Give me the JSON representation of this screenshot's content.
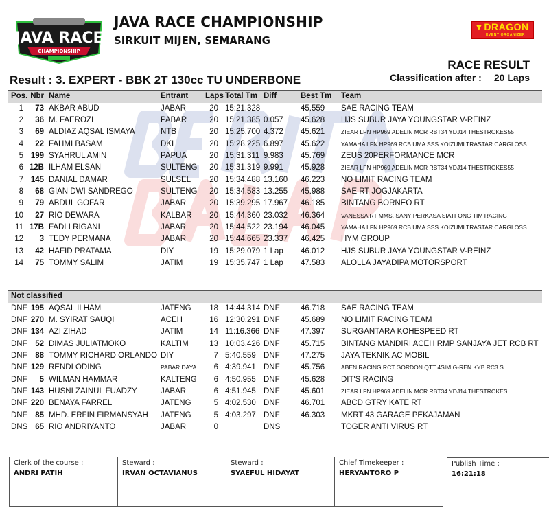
{
  "header": {
    "logo_text": "JAVA RACE CHAMPIONSHIP",
    "title": "JAVA RACE CHAMPIONSHIP",
    "subtitle": "SIRKUIT MIJEN, SEMARANG",
    "result_label": "Result : 3. EXPERT - BBK 2T 130cc TU UNDERBONE",
    "organizer_logo": "DRAGON EVENT ORGANIZER",
    "race_result": "RACE RESULT",
    "classification_label": "Classification after :",
    "classification_value": "20 Laps"
  },
  "watermark": "BERITA BALAP .COM",
  "columns": {
    "pos": "Pos.",
    "nbr": "Nbr",
    "name": "Name",
    "entrant": "Entrant",
    "laps": "Laps",
    "total": "Total Tm",
    "diff": "Diff",
    "best": "Best Tm",
    "team": "Team"
  },
  "classified": [
    {
      "pos": "1",
      "nbr": "73",
      "name": "AKBAR ABUD",
      "entrant": "JABAR",
      "laps": "20",
      "total": "15:21.328",
      "diff": "",
      "best": "45.559",
      "team": "SAE RACING TEAM"
    },
    {
      "pos": "2",
      "nbr": "36",
      "name": "M. FAEROZI",
      "entrant": "PABAR",
      "laps": "20",
      "total": "15:21.385",
      "diff": "0.057",
      "best": "45.628",
      "team": "HJS SUBUR JAYA YOUNGSTAR V-REINZ"
    },
    {
      "pos": "3",
      "nbr": "69",
      "name": "ALDIAZ AQSAL ISMAYA",
      "entrant": "NTB",
      "laps": "20",
      "total": "15:25.700",
      "diff": "4.372",
      "best": "45.621",
      "team": "ZIEAR LFN HP969 ADELIN MCR RBT34 YDJ14 THESTROKES55",
      "small": true
    },
    {
      "pos": "4",
      "nbr": "22",
      "name": "FAHMI BASAM",
      "entrant": "DKI",
      "laps": "20",
      "total": "15:28.225",
      "diff": "6.897",
      "best": "45.622",
      "team": "YAMAHA LFN HP969 RCB UMA SSS KOIZUMI TRASTAR CARGLOSS",
      "small": true
    },
    {
      "pos": "5",
      "nbr": "199",
      "name": "SYAHRUL AMIN",
      "entrant": "PAPUA",
      "laps": "20",
      "total": "15:31.311",
      "diff": "9.983",
      "best": "45.769",
      "team": "ZEUS 20PERFORMANCE MCR"
    },
    {
      "pos": "6",
      "nbr": "12B",
      "name": "ILHAM ELSAN",
      "entrant": "SULTENG",
      "laps": "20",
      "total": "15:31.319",
      "diff": "9.991",
      "best": "45.928",
      "team": "ZIEAR LFN HP969 ADELIN MCR RBT34 YDJ14 THESTROKES55",
      "small": true
    },
    {
      "pos": "7",
      "nbr": "145",
      "name": "DANIAL DAMAR",
      "entrant": "SULSEL",
      "laps": "20",
      "total": "15:34.488",
      "diff": "13.160",
      "best": "46.223",
      "team": "NO LIMIT RACING TEAM"
    },
    {
      "pos": "8",
      "nbr": "68",
      "name": "GIAN DWI SANDREGO",
      "entrant": "SULTENG",
      "laps": "20",
      "total": "15:34.583",
      "diff": "13.255",
      "best": "45.988",
      "team": "SAE RT JOGJAKARTA"
    },
    {
      "pos": "9",
      "nbr": "79",
      "name": "ABDUL GOFAR",
      "entrant": "JABAR",
      "laps": "20",
      "total": "15:39.295",
      "diff": "17.967",
      "best": "46.185",
      "team": "BINTANG BORNEO RT"
    },
    {
      "pos": "10",
      "nbr": "27",
      "name": "RIO DEWARA",
      "entrant": "KALBAR",
      "laps": "20",
      "total": "15:44.360",
      "diff": "23.032",
      "best": "46.364",
      "team": "VANESSA RT MMS, SANY PERKASA SIATFONG TIM RACING",
      "small": true
    },
    {
      "pos": "11",
      "nbr": "17B",
      "name": "FADLI RIGANI",
      "entrant": "JABAR",
      "laps": "20",
      "total": "15:44.522",
      "diff": "23.194",
      "best": "46.045",
      "team": "YAMAHA LFN HP969 RCB UMA SSS KOIZUMI TRASTAR CARGLOSS",
      "small": true
    },
    {
      "pos": "12",
      "nbr": "3",
      "name": "TEDY PERMANA",
      "entrant": "JABAR",
      "laps": "20",
      "total": "15:44.665",
      "diff": "23.337",
      "best": "46.425",
      "team": "HYM GROUP"
    },
    {
      "pos": "13",
      "nbr": "42",
      "name": "HAFID PRATAMA",
      "entrant": "DIY",
      "laps": "19",
      "total": "15:29.079",
      "diff": "1 Lap",
      "best": "46.012",
      "team": "HJS SUBUR JAYA YOUNGSTAR V-REINZ"
    },
    {
      "pos": "14",
      "nbr": "75",
      "name": "TOMMY SALIM",
      "entrant": "JATIM",
      "laps": "19",
      "total": "15:35.747",
      "diff": "1 Lap",
      "best": "47.583",
      "team": "ALOLLA JAYADIPA MOTORSPORT"
    }
  ],
  "not_classified_label": "Not classified",
  "not_classified": [
    {
      "pos": "DNF",
      "nbr": "195",
      "name": "AQSAL ILHAM",
      "entrant": "JATENG",
      "laps": "18",
      "total": "14:44.314",
      "diff": "DNF",
      "best": "46.718",
      "team": "SAE RACING TEAM"
    },
    {
      "pos": "DNF",
      "nbr": "270",
      "name": "M. SYIRAT SAUQI",
      "entrant": "ACEH",
      "laps": "16",
      "total": "12:30.291",
      "diff": "DNF",
      "best": "45.689",
      "team": "NO LIMIT RACING TEAM"
    },
    {
      "pos": "DNF",
      "nbr": "134",
      "name": "AZI ZIHAD",
      "entrant": "JATIM",
      "laps": "14",
      "total": "11:16.366",
      "diff": "DNF",
      "best": "47.397",
      "team": "SURGANTARA KOHESPEED RT"
    },
    {
      "pos": "DNF",
      "nbr": "52",
      "name": "DIMAS JULIATMOKO",
      "entrant": "KALTIM",
      "laps": "13",
      "total": "10:03.426",
      "diff": "DNF",
      "best": "45.715",
      "team": "BINTANG MANDIRI ACEH RMP SANJAYA JET RCB RT"
    },
    {
      "pos": "DNF",
      "nbr": "88",
      "name": "TOMMY RICHARD ORLANDO",
      "entrant": "DIY",
      "laps": "7",
      "total": "5:40.559",
      "diff": "DNF",
      "best": "47.275",
      "team": "JAYA TEKNIK AC MOBIL"
    },
    {
      "pos": "DNF",
      "nbr": "129",
      "name": "RENDI ODING",
      "entrant": "PABAR DAYA",
      "entrant_small": true,
      "laps": "6",
      "total": "4:39.941",
      "diff": "DNF",
      "best": "45.756",
      "team": "ABEN RACING RCT GORDON QTT 4SIM G-REN KYB RC3 S",
      "small": true
    },
    {
      "pos": "DNF",
      "nbr": "5",
      "name": "WILMAN HAMMAR",
      "entrant": "KALTENG",
      "laps": "6",
      "total": "4:50.955",
      "diff": "DNF",
      "best": "45.628",
      "team": "DIT'S RACING"
    },
    {
      "pos": "DNF",
      "nbr": "143",
      "name": "HUSNI ZAINUL FUADZY",
      "entrant": "JABAR",
      "laps": "6",
      "total": "4:51.945",
      "diff": "DNF",
      "best": "45.601",
      "team": "ZIEAR LFN HP969 ADELIN MCR RBT34 YDJ14 THESTROKES",
      "small": true
    },
    {
      "pos": "DNF",
      "nbr": "220",
      "name": "BENAYA FARREL",
      "entrant": "JATENG",
      "laps": "5",
      "total": "4:02.530",
      "diff": "DNF",
      "best": "46.701",
      "team": "ABCD GTRY KATE RT"
    },
    {
      "pos": "DNF",
      "nbr": "85",
      "name": "MHD. ERFIN FIRMANSYAH",
      "entrant": "JATENG",
      "laps": "5",
      "total": "4:03.297",
      "diff": "DNF",
      "best": "46.303",
      "team": "MKRT 43 GARAGE PEKAJAMAN"
    },
    {
      "pos": "DNS",
      "nbr": "65",
      "name": "RIO ANDRIYANTO",
      "entrant": "JABAR",
      "laps": "0",
      "total": "",
      "diff": "DNS",
      "best": "",
      "team": "TOGER ANTI VIRUS RT"
    }
  ],
  "footer": [
    {
      "label": "Clerk of the course :",
      "value": "ANDRI PATIH"
    },
    {
      "label": "Steward :",
      "value": "IRVAN OCTAVIANUS"
    },
    {
      "label": "Steward :",
      "value": "SYAEFUL HIDAYAT"
    },
    {
      "label": "Chief Timekeeper :",
      "value": "HERYANTORO P"
    },
    {
      "label": "Publish Time :",
      "value": "16:21:18"
    }
  ],
  "colors": {
    "header_band": "#d9d9d9",
    "logo_red": "#e31e24",
    "logo_yellow": "#ffe000",
    "watermark_blue": "#1f3c9a",
    "watermark_red": "#e02020"
  }
}
